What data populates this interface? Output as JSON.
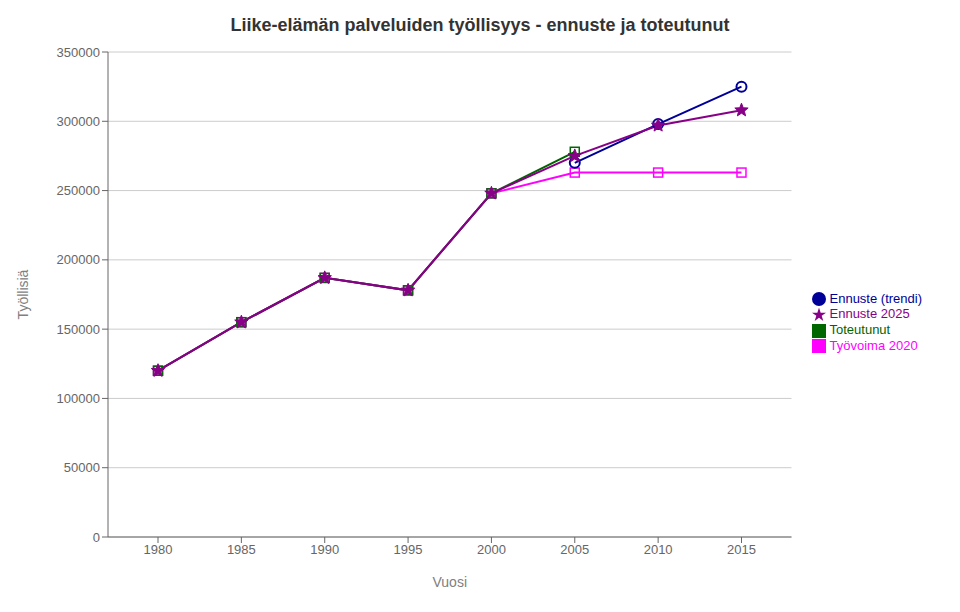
{
  "chart_data": {
    "type": "line",
    "title": "Liike-elämän palveluiden työllisyys - ennuste ja toteutunut",
    "xlabel": "Vuosi",
    "ylabel": "Työllisiä",
    "series": [
      {
        "name": "Työvoima 2020",
        "color": "#FF00FF",
        "marker": "square",
        "x": [
          1980,
          1985,
          1990,
          1995,
          2000,
          2005,
          2010,
          2015
        ],
        "values": [
          120000,
          155000,
          187000,
          178000,
          248000,
          263000,
          263000,
          263000
        ]
      },
      {
        "name": "Ennuste (trendi)",
        "color": "#000099",
        "marker": "circle",
        "x": [
          2005,
          2010,
          2015
        ],
        "values": [
          270000,
          298000,
          325000
        ]
      },
      {
        "name": "Toteutunut",
        "color": "#006600",
        "marker": "square",
        "x": [
          1980,
          1985,
          1990,
          1995,
          2000,
          2005
        ],
        "values": [
          120000,
          155000,
          187000,
          178000,
          248000,
          278000
        ]
      },
      {
        "name": "Ennuste 2025",
        "color": "#880088",
        "marker": "star",
        "x": [
          1980,
          1985,
          1990,
          1995,
          2000,
          2005,
          2010,
          2015
        ],
        "values": [
          120000,
          155000,
          187000,
          178000,
          248000,
          275000,
          297000,
          308000
        ]
      }
    ],
    "xlim": [
      1977,
      2018
    ],
    "xticks": [
      1980,
      1985,
      1990,
      1995,
      2000,
      2005,
      2010,
      2015
    ],
    "ylim": [
      0,
      350000
    ],
    "yticks": [
      0,
      50000,
      100000,
      150000,
      200000,
      250000,
      300000,
      350000
    ],
    "grid": "y",
    "legend": "right"
  }
}
